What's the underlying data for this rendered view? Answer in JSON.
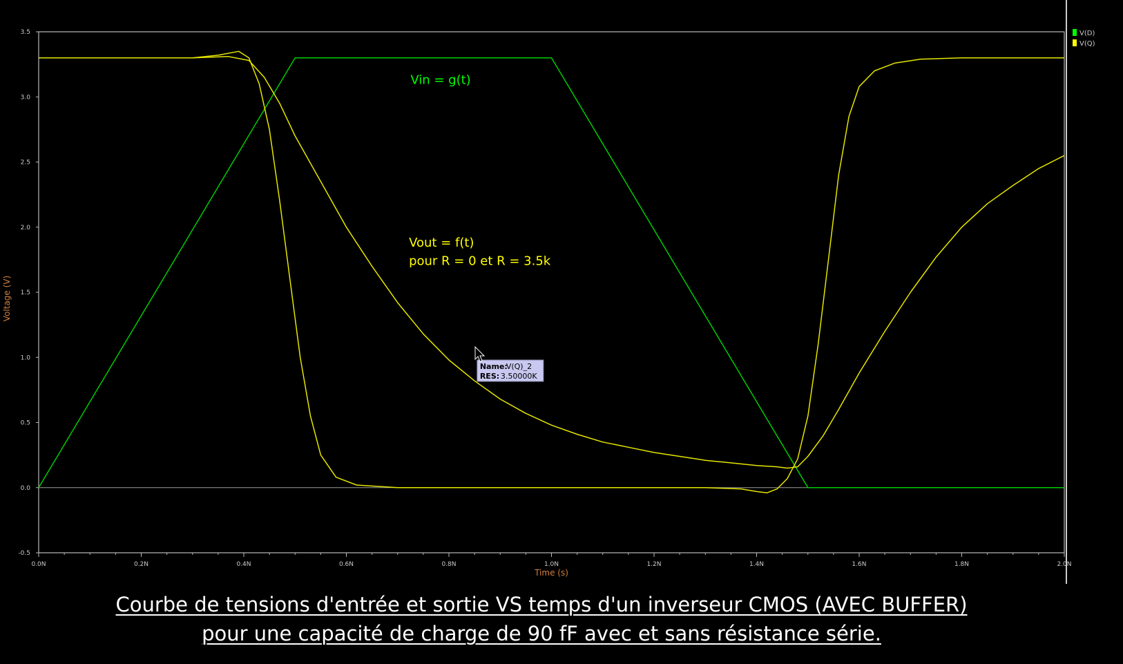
{
  "chart_data": {
    "type": "line",
    "xlabel": "Time (s)",
    "ylabel": "Voltage (V)",
    "xlim": [
      0,
      2.0
    ],
    "ylim": [
      -0.5,
      3.5
    ],
    "x_unit": "ns",
    "x_ticks": [
      {
        "v": 0.0,
        "label": "0.0N"
      },
      {
        "v": 0.2,
        "label": "0.2N"
      },
      {
        "v": 0.4,
        "label": "0.4N"
      },
      {
        "v": 0.6,
        "label": "0.6N"
      },
      {
        "v": 0.8,
        "label": "0.8N"
      },
      {
        "v": 1.0,
        "label": "1.0N"
      },
      {
        "v": 1.2,
        "label": "1.2N"
      },
      {
        "v": 1.4,
        "label": "1.4N"
      },
      {
        "v": 1.6,
        "label": "1.6N"
      },
      {
        "v": 1.8,
        "label": "1.8N"
      },
      {
        "v": 2.0,
        "label": "2.0N"
      }
    ],
    "y_ticks": [
      {
        "v": 3.5,
        "label": "3.5"
      },
      {
        "v": 3.0,
        "label": "3.0"
      },
      {
        "v": 2.5,
        "label": "2.5"
      },
      {
        "v": 2.0,
        "label": "2.0"
      },
      {
        "v": 1.5,
        "label": "1.5"
      },
      {
        "v": 1.0,
        "label": "1.0"
      },
      {
        "v": 0.5,
        "label": "0.5"
      },
      {
        "v": 0.0,
        "label": "0.0"
      },
      {
        "v": -0.5,
        "label": "-0.5"
      }
    ],
    "legend": {
      "placement": "top-right",
      "entries": [
        {
          "label": "V(D)",
          "color": "#00ff00"
        },
        {
          "label": "V(Q)",
          "color": "#ffff00"
        }
      ]
    },
    "series": [
      {
        "name": "V(D)",
        "color": "#00cc00",
        "points": [
          [
            0.0,
            0.0
          ],
          [
            0.5,
            3.3
          ],
          [
            1.0,
            3.3
          ],
          [
            1.5,
            0.0
          ],
          [
            2.0,
            0.0
          ]
        ]
      },
      {
        "name": "V(Q)",
        "color": "#e6e600",
        "points": [
          [
            0.0,
            3.3
          ],
          [
            0.3,
            3.3
          ],
          [
            0.35,
            3.32
          ],
          [
            0.39,
            3.35
          ],
          [
            0.41,
            3.3
          ],
          [
            0.43,
            3.1
          ],
          [
            0.45,
            2.75
          ],
          [
            0.47,
            2.2
          ],
          [
            0.49,
            1.6
          ],
          [
            0.51,
            1.0
          ],
          [
            0.53,
            0.55
          ],
          [
            0.55,
            0.25
          ],
          [
            0.58,
            0.08
          ],
          [
            0.62,
            0.02
          ],
          [
            0.7,
            0.0
          ],
          [
            1.0,
            0.0
          ],
          [
            1.3,
            0.0
          ],
          [
            1.37,
            -0.01
          ],
          [
            1.4,
            -0.03
          ],
          [
            1.42,
            -0.04
          ],
          [
            1.44,
            -0.01
          ],
          [
            1.46,
            0.07
          ],
          [
            1.48,
            0.22
          ],
          [
            1.5,
            0.55
          ],
          [
            1.52,
            1.1
          ],
          [
            1.54,
            1.75
          ],
          [
            1.56,
            2.4
          ],
          [
            1.58,
            2.85
          ],
          [
            1.6,
            3.08
          ],
          [
            1.63,
            3.2
          ],
          [
            1.67,
            3.26
          ],
          [
            1.72,
            3.29
          ],
          [
            1.8,
            3.3
          ],
          [
            2.0,
            3.3
          ]
        ]
      },
      {
        "name": "V(Q)_2",
        "color": "#e6e600",
        "points": [
          [
            0.0,
            3.3
          ],
          [
            0.3,
            3.3
          ],
          [
            0.37,
            3.31
          ],
          [
            0.41,
            3.28
          ],
          [
            0.44,
            3.15
          ],
          [
            0.47,
            2.95
          ],
          [
            0.5,
            2.7
          ],
          [
            0.55,
            2.35
          ],
          [
            0.6,
            2.0
          ],
          [
            0.65,
            1.7
          ],
          [
            0.7,
            1.42
          ],
          [
            0.75,
            1.18
          ],
          [
            0.8,
            0.98
          ],
          [
            0.85,
            0.82
          ],
          [
            0.9,
            0.68
          ],
          [
            0.95,
            0.57
          ],
          [
            1.0,
            0.48
          ],
          [
            1.05,
            0.41
          ],
          [
            1.1,
            0.35
          ],
          [
            1.15,
            0.31
          ],
          [
            1.2,
            0.27
          ],
          [
            1.25,
            0.24
          ],
          [
            1.3,
            0.21
          ],
          [
            1.35,
            0.19
          ],
          [
            1.4,
            0.17
          ],
          [
            1.44,
            0.16
          ],
          [
            1.46,
            0.15
          ],
          [
            1.48,
            0.16
          ],
          [
            1.5,
            0.24
          ],
          [
            1.53,
            0.4
          ],
          [
            1.56,
            0.6
          ],
          [
            1.6,
            0.88
          ],
          [
            1.65,
            1.2
          ],
          [
            1.7,
            1.5
          ],
          [
            1.75,
            1.77
          ],
          [
            1.8,
            2.0
          ],
          [
            1.85,
            2.18
          ],
          [
            1.9,
            2.32
          ],
          [
            1.95,
            2.45
          ],
          [
            2.0,
            2.55
          ]
        ]
      }
    ],
    "annotations": [
      {
        "text": "Vin = g(t)",
        "color": "#00ff00",
        "x": 0.725,
        "y": 3.1
      },
      {
        "text": "Vout = f(t)",
        "color": "#ffff00",
        "x": 0.722,
        "y": 1.85
      },
      {
        "text": "pour R = 0 et R = 3.5k",
        "color": "#ffff00",
        "x": 0.722,
        "y": 1.71
      }
    ],
    "tooltip": {
      "name_label": "Name:",
      "name_value": "V(Q)_2",
      "res_label": "RES:",
      "res_value": "3.50000K",
      "x": 0.855,
      "y": 0.98
    }
  },
  "caption": {
    "line1": "Courbe de tensions d'entrée et sortie VS temps   d'un inverseur CMOS (AVEC BUFFER)",
    "line2": "pour une capacité de charge de 90 fF avec et sans résistance série."
  }
}
